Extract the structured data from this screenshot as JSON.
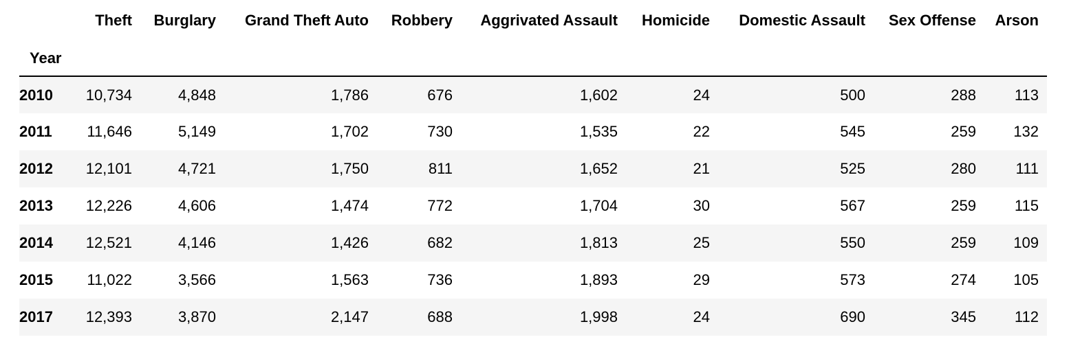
{
  "table": {
    "columns": [
      "Theft",
      "Burglary",
      "Grand Theft Auto",
      "Robbery",
      "Aggrivated Assault",
      "Homicide",
      "Domestic Assault",
      "Sex Offense",
      "Arson"
    ],
    "index_name": "Year",
    "rows": [
      {
        "year": "2010",
        "values": [
          "10,734",
          "4,848",
          "1,786",
          "676",
          "1,602",
          "24",
          "500",
          "288",
          "113"
        ]
      },
      {
        "year": "2011",
        "values": [
          "11,646",
          "5,149",
          "1,702",
          "730",
          "1,535",
          "22",
          "545",
          "259",
          "132"
        ]
      },
      {
        "year": "2012",
        "values": [
          "12,101",
          "4,721",
          "1,750",
          "811",
          "1,652",
          "21",
          "525",
          "280",
          "111"
        ]
      },
      {
        "year": "2013",
        "values": [
          "12,226",
          "4,606",
          "1,474",
          "772",
          "1,704",
          "30",
          "567",
          "259",
          "115"
        ]
      },
      {
        "year": "2014",
        "values": [
          "12,521",
          "4,146",
          "1,426",
          "682",
          "1,813",
          "25",
          "550",
          "259",
          "109"
        ]
      },
      {
        "year": "2015",
        "values": [
          "11,022",
          "3,566",
          "1,563",
          "736",
          "1,893",
          "29",
          "573",
          "274",
          "105"
        ]
      },
      {
        "year": "2017",
        "values": [
          "12,393",
          "3,870",
          "2,147",
          "688",
          "1,998",
          "24",
          "690",
          "345",
          "112"
        ]
      }
    ]
  }
}
